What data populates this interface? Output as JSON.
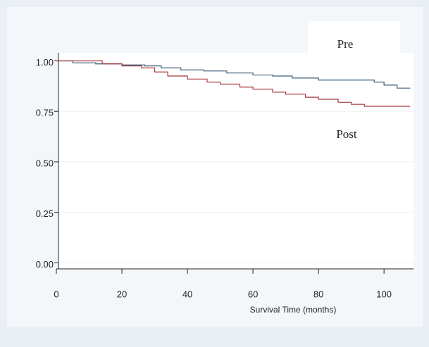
{
  "chart_data": {
    "type": "step",
    "xlabel": "Survival Time (months)",
    "xlim": [
      0,
      109
    ],
    "xticks": [
      0,
      20,
      40,
      60,
      80,
      100
    ],
    "ylim": [
      -0.03,
      1.04
    ],
    "yticks": [
      {
        "value": 0,
        "label": "0.00"
      },
      {
        "value": 0.25,
        "label": "0.25"
      },
      {
        "value": 0.5,
        "label": "0.50"
      },
      {
        "value": 0.75,
        "label": "0.75"
      },
      {
        "value": 1,
        "label": "1.00"
      }
    ],
    "grid": true,
    "series": [
      {
        "name": "Pre",
        "color": "#3b5f7d",
        "x": [
          0,
          5,
          12,
          20,
          27,
          32,
          38,
          45,
          52,
          60,
          66,
          72,
          80,
          90,
          97,
          100,
          104,
          108
        ],
        "values": [
          1.0,
          0.99,
          0.985,
          0.98,
          0.975,
          0.965,
          0.955,
          0.95,
          0.94,
          0.93,
          0.925,
          0.915,
          0.905,
          0.905,
          0.895,
          0.88,
          0.865,
          0.865
        ]
      },
      {
        "name": "Post",
        "color": "#a63a3a",
        "x": [
          0,
          14,
          20,
          26,
          30,
          34,
          40,
          46,
          50,
          56,
          60,
          66,
          70,
          76,
          80,
          86,
          90,
          94,
          108
        ],
        "values": [
          1.0,
          0.985,
          0.975,
          0.965,
          0.945,
          0.925,
          0.91,
          0.895,
          0.885,
          0.87,
          0.86,
          0.845,
          0.835,
          0.82,
          0.81,
          0.795,
          0.785,
          0.775,
          0.775
        ]
      }
    ]
  }
}
